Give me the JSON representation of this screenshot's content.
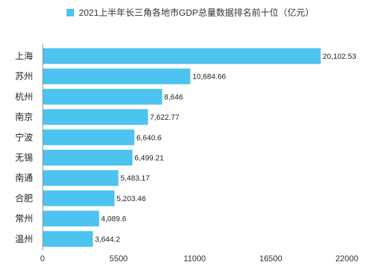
{
  "chart_data": {
    "type": "bar",
    "orientation": "horizontal",
    "categories": [
      "上海",
      "苏州",
      "杭州",
      "南京",
      "宁波",
      "无锡",
      "南通",
      "合肥",
      "常州",
      "温州"
    ],
    "series": [
      {
        "name": "2021上半年长三角各地市GDP总量数据排名前十位（亿元）",
        "values": [
          20102.53,
          10684.66,
          8646,
          7622.77,
          6640.6,
          6499.21,
          5483.17,
          5203.46,
          4089.6,
          3644.2
        ],
        "color": "#4dc3f0"
      }
    ],
    "value_labels": [
      "20,102.53",
      "10,684.66",
      "8,646",
      "7,622.77",
      "6,640.6",
      "6,499.21",
      "5,483.17",
      "5,203.46",
      "4,089.6",
      "3,644.2"
    ],
    "x_ticks": [
      0,
      5500,
      11000,
      16500,
      22000
    ],
    "xlim": [
      0,
      22000
    ],
    "grid": false,
    "legend": "top"
  }
}
